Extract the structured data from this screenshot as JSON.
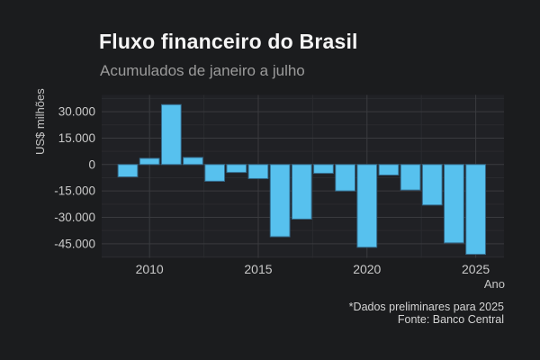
{
  "header": {
    "title": "Fluxo financeiro do Brasil",
    "subtitle": "Acumulados de janeiro a julho"
  },
  "footer": {
    "note": "*Dados preliminares para 2025",
    "source": "Fonte: Banco Central"
  },
  "chart_data": {
    "type": "bar",
    "title": "Fluxo financeiro do Brasil",
    "subtitle": "Acumulados de janeiro a julho",
    "xlabel": "Ano",
    "ylabel": "US$ milhões",
    "categories": [
      2009,
      2010,
      2011,
      2012,
      2013,
      2014,
      2015,
      2016,
      2017,
      2018,
      2019,
      2020,
      2021,
      2022,
      2023,
      2024,
      2025
    ],
    "values": [
      -7000,
      3500,
      34000,
      4000,
      -9500,
      -4500,
      -8000,
      -41000,
      -31000,
      -5000,
      -15000,
      -47000,
      -6000,
      -14500,
      -23000,
      -44500,
      -51000
    ],
    "x_ticks": [
      {
        "value": 2010,
        "label": "2010"
      },
      {
        "value": 2015,
        "label": "2015"
      },
      {
        "value": 2020,
        "label": "2020"
      },
      {
        "value": 2025,
        "label": "2025"
      }
    ],
    "x_minor": [
      2012.5,
      2017.5,
      2022.5
    ],
    "y_ticks": [
      {
        "value": 30000,
        "label": "30.000"
      },
      {
        "value": 15000,
        "label": "15.000"
      },
      {
        "value": 0,
        "label": "0"
      },
      {
        "value": -15000,
        "label": "-15.000"
      },
      {
        "value": -30000,
        "label": "-30.000"
      },
      {
        "value": -45000,
        "label": "-45.000"
      }
    ],
    "y_minor": [
      37500,
      22500,
      7500,
      -7500,
      -22500,
      -37500,
      -52500
    ],
    "xlim": [
      2007.8,
      2026.3
    ],
    "ylim": [
      -53000,
      39500
    ],
    "grid": true,
    "legend": false,
    "bar_color": "#57C1EE",
    "bar_edge_color": "#34698A",
    "background": "#1B1C1E",
    "plot_background": "#202125",
    "grid_major_color": "#3A3B3F",
    "grid_minor_color": "#2A2B2F",
    "tick_text_color": "#C9C9C9",
    "axis_title_color": "#C6C6C6",
    "caption": [
      "*Dados preliminares para 2025",
      "Fonte: Banco Central"
    ]
  }
}
